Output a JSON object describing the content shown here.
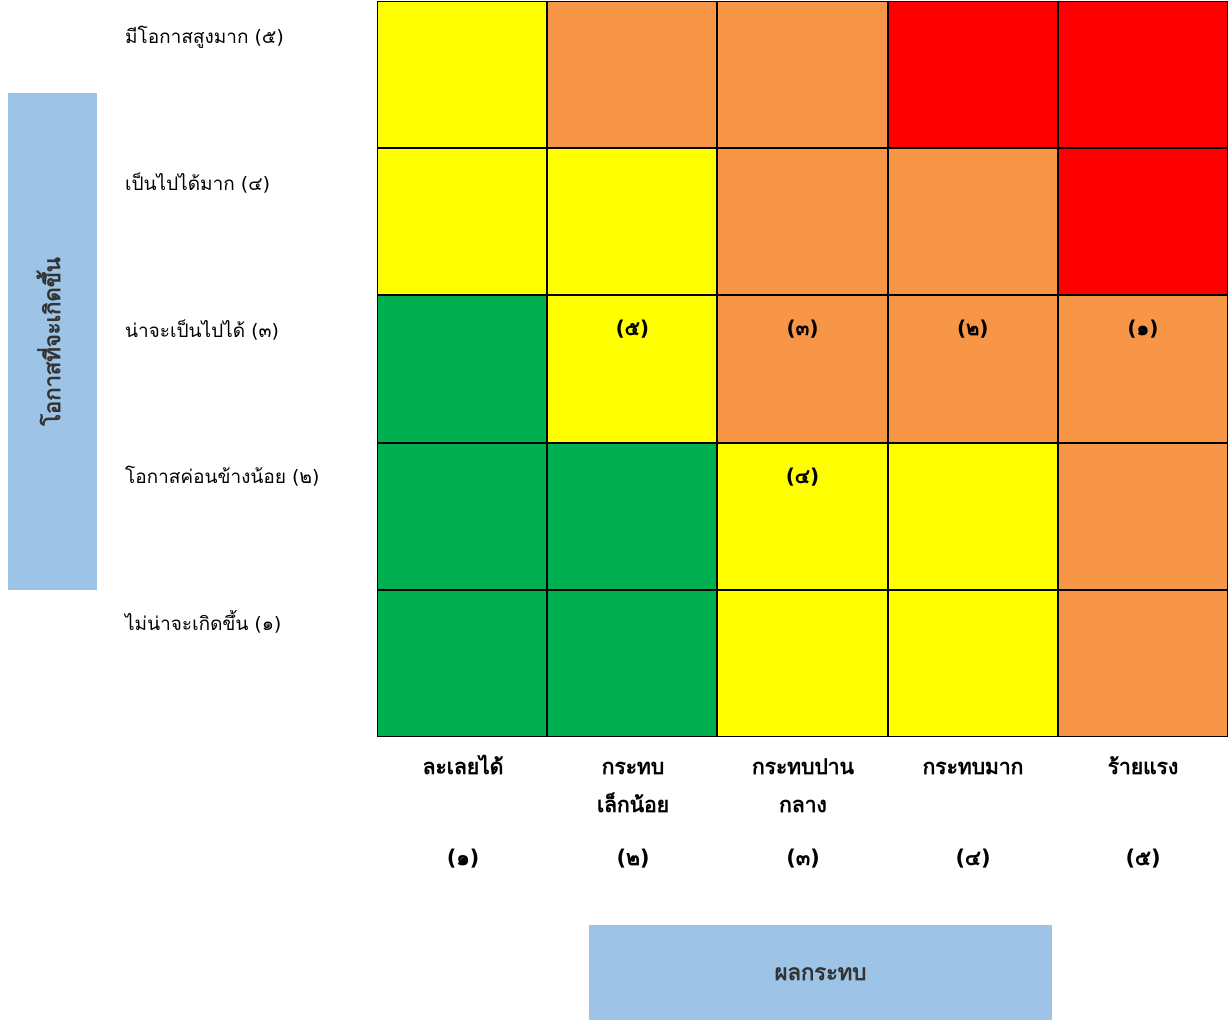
{
  "y_axis_title": "โอกาสที่จะเกิดขึ้น",
  "x_axis_title": "ผลกระทบ",
  "row_labels": [
    "มีโอกาสสูงมาก (๕)",
    "เป็นไปได้มาก (๔)",
    "น่าจะเป็นไปได้ (๓)",
    "โอกาสค่อนข้างน้อย (๒)",
    "ไม่น่าจะเกิดขึ้น (๑)"
  ],
  "columns": [
    {
      "lines": [
        "ละเลยได้"
      ],
      "number": "(๑)"
    },
    {
      "lines": [
        "กระทบ",
        "เล็กน้อย"
      ],
      "number": "(๒)"
    },
    {
      "lines": [
        "กระทบปาน",
        "กลาง"
      ],
      "number": "(๓)"
    },
    {
      "lines": [
        "กระทบมาก"
      ],
      "number": "(๔)"
    },
    {
      "lines": [
        "ร้ายแรง"
      ],
      "number": "(๕)"
    }
  ],
  "cells": [
    [
      {
        "color": "#ffff00"
      },
      {
        "color": "#f79646"
      },
      {
        "color": "#f79646"
      },
      {
        "color": "#ff0000"
      },
      {
        "color": "#ff0000"
      }
    ],
    [
      {
        "color": "#ffff00"
      },
      {
        "color": "#ffff00"
      },
      {
        "color": "#f79646"
      },
      {
        "color": "#f79646"
      },
      {
        "color": "#ff0000"
      }
    ],
    [
      {
        "color": "#00b050"
      },
      {
        "color": "#ffff00",
        "label": "(๕)"
      },
      {
        "color": "#f79646",
        "label": "(๓)"
      },
      {
        "color": "#f79646",
        "label": "(๒)"
      },
      {
        "color": "#f79646",
        "label": "(๑)"
      }
    ],
    [
      {
        "color": "#00b050"
      },
      {
        "color": "#00b050"
      },
      {
        "color": "#ffff00",
        "label": "(๔)"
      },
      {
        "color": "#ffff00"
      },
      {
        "color": "#f79646"
      }
    ],
    [
      {
        "color": "#00b050"
      },
      {
        "color": "#00b050"
      },
      {
        "color": "#ffff00"
      },
      {
        "color": "#ffff00"
      },
      {
        "color": "#f79646"
      }
    ]
  ]
}
